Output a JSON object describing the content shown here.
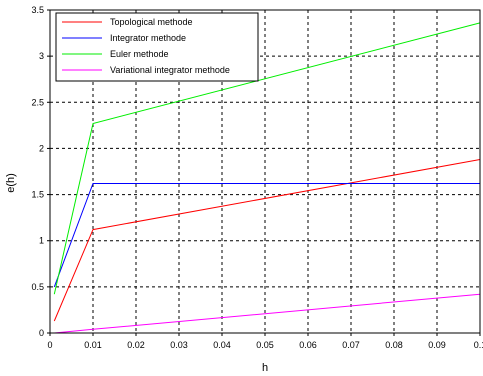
{
  "chart_data": {
    "type": "line",
    "xlabel": "h",
    "ylabel": "e(h)",
    "xlim": [
      0,
      0.1
    ],
    "ylim": [
      0,
      3.5
    ],
    "x_ticks": [
      "0",
      "0.01",
      "0.02",
      "0.03",
      "0.04",
      "0.05",
      "0.06",
      "0.07",
      "0.08",
      "0.09",
      "0.1"
    ],
    "y_ticks": [
      "0",
      "0.5",
      "1",
      "1.5",
      "2",
      "2.5",
      "3",
      "3.5"
    ],
    "grid": true,
    "grid_style": "dashed",
    "legend_position": "top-left",
    "series": [
      {
        "name": "Topological methode",
        "color": "#ff0000",
        "x": [
          0.001,
          0.01,
          0.1
        ],
        "y": [
          0.13,
          1.12,
          1.88
        ]
      },
      {
        "name": "Integrator methode",
        "color": "#0000ff",
        "x": [
          0.001,
          0.01,
          0.1
        ],
        "y": [
          0.5,
          1.62,
          1.62
        ]
      },
      {
        "name": "Euler methode",
        "color": "#00ee00",
        "x": [
          0.001,
          0.01,
          0.1
        ],
        "y": [
          0.42,
          2.27,
          3.36
        ]
      },
      {
        "name": "Variational integrator methode",
        "color": "#ff00ff",
        "x": [
          0.001,
          0.01,
          0.1
        ],
        "y": [
          0.0,
          0.04,
          0.42
        ]
      }
    ]
  }
}
